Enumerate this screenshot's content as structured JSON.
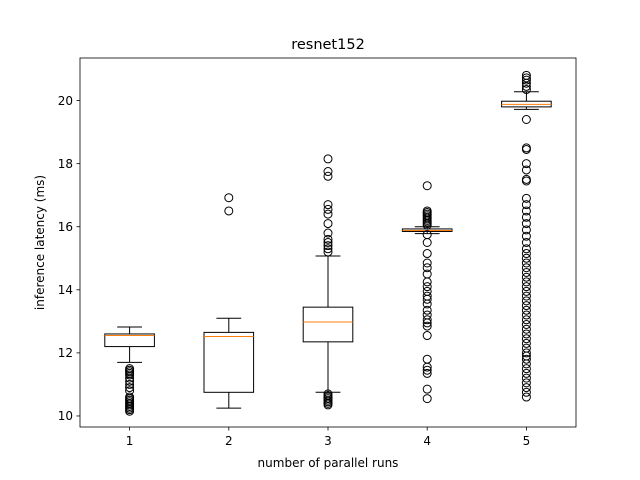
{
  "chart_data": {
    "type": "box",
    "title": "resnet152",
    "xlabel": "number of parallel runs",
    "ylabel": "inference latency (ms)",
    "categories": [
      "1",
      "2",
      "3",
      "4",
      "5"
    ],
    "ylim": [
      9.65,
      21.35
    ],
    "yticks": [
      10,
      12,
      14,
      16,
      18,
      20
    ],
    "ytick_labels": [
      "10",
      "12",
      "14",
      "16",
      "18",
      "20"
    ],
    "grid": false,
    "colors": {
      "box": "#000000",
      "median": "#ff7f0e",
      "flier": "#000000"
    },
    "boxes": [
      {
        "label": "1",
        "whisker_low": 11.7,
        "q1": 12.2,
        "median": 12.55,
        "q3": 12.6,
        "whisker_high": 12.82,
        "fliers": [
          10.15,
          10.2,
          10.25,
          10.3,
          10.35,
          10.4,
          10.45,
          10.5,
          10.55,
          10.6,
          10.8,
          10.9,
          11.0,
          11.1,
          11.2,
          11.3,
          11.35,
          11.4,
          11.45,
          11.5
        ]
      },
      {
        "label": "2",
        "whisker_low": 10.25,
        "q1": 10.75,
        "median": 12.52,
        "q3": 12.65,
        "whisker_high": 13.1,
        "fliers": [
          16.5,
          16.92
        ]
      },
      {
        "label": "3",
        "whisker_low": 10.75,
        "q1": 12.35,
        "median": 12.98,
        "q3": 13.45,
        "whisker_high": 15.07,
        "fliers": [
          10.35,
          10.4,
          10.45,
          10.5,
          10.55,
          10.6,
          10.65,
          10.7,
          15.2,
          15.3,
          15.4,
          15.5,
          15.6,
          15.8,
          16.1,
          16.4,
          16.55,
          16.7,
          17.6,
          17.75,
          18.15
        ]
      },
      {
        "label": "4",
        "whisker_low": 15.78,
        "q1": 15.85,
        "median": 15.88,
        "q3": 15.93,
        "whisker_high": 16.0,
        "fliers": [
          10.55,
          10.85,
          11.35,
          11.45,
          11.55,
          11.8,
          12.55,
          12.85,
          12.95,
          13.05,
          13.2,
          13.35,
          13.55,
          13.7,
          13.8,
          13.95,
          14.1,
          14.25,
          14.5,
          14.7,
          14.85,
          15.15,
          15.5,
          15.75,
          16.05,
          16.1,
          16.15,
          16.2,
          16.25,
          16.3,
          16.35,
          16.4,
          16.45,
          16.5,
          17.3
        ]
      },
      {
        "label": "5",
        "whisker_low": 19.72,
        "q1": 19.8,
        "median": 19.88,
        "q3": 19.98,
        "whisker_high": 20.28,
        "fliers": [
          10.6,
          10.75,
          10.9,
          11.05,
          11.2,
          11.35,
          11.5,
          11.65,
          11.8,
          11.9,
          12.0,
          12.15,
          12.3,
          12.45,
          12.6,
          12.75,
          12.9,
          13.05,
          13.2,
          13.35,
          13.5,
          13.65,
          13.8,
          13.95,
          14.1,
          14.25,
          14.4,
          14.55,
          14.7,
          14.85,
          15.0,
          15.15,
          15.3,
          15.5,
          15.7,
          15.9,
          16.1,
          16.3,
          16.5,
          16.7,
          16.9,
          17.45,
          17.5,
          17.8,
          18.0,
          18.45,
          18.5,
          19.4,
          20.35,
          20.45,
          20.55,
          20.65,
          20.72,
          20.8
        ]
      }
    ]
  }
}
